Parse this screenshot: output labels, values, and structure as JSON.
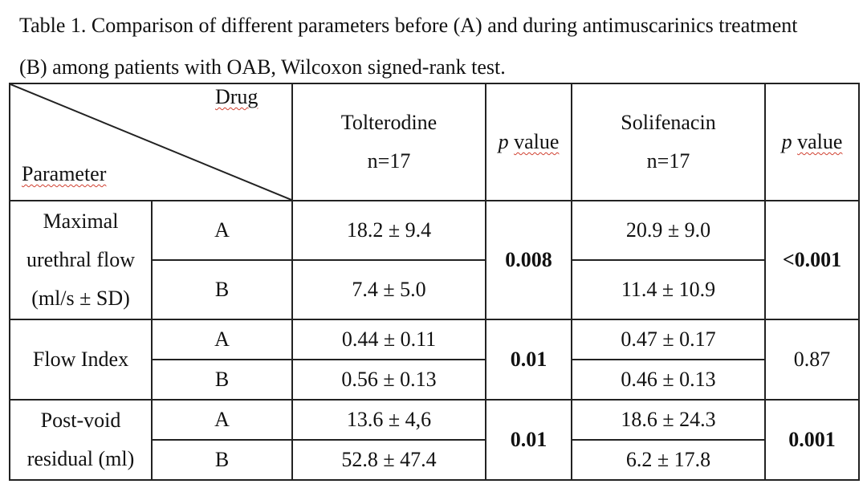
{
  "caption": {
    "line1": "Table 1. Comparison of different parameters before (A) and during antimuscarinics treatment",
    "line2": "(B) among patients with OAB, Wilcoxon signed-rank test."
  },
  "header": {
    "drug_label": "Drug",
    "parameter_label": "Parameter",
    "tolterodine_name": "Tolterodine",
    "tolterodine_n": "n=17",
    "solifenacin_name": "Solifenacin",
    "solifenacin_n": "n=17",
    "p_italic": "p",
    "p_word": "value"
  },
  "rows": [
    {
      "label_lines": [
        "Maximal",
        "urethral flow",
        "(ml/s ± SD)"
      ],
      "a_label": "A",
      "b_label": "B",
      "tol_a": "18.2 ± 9.4",
      "tol_b": "7.4 ± 5.0",
      "tol_p": "0.008",
      "sol_a": "20.9 ± 9.0",
      "sol_b": "11.4 ± 10.9",
      "sol_p": "<0.001"
    },
    {
      "label_lines": [
        "Flow Index"
      ],
      "a_label": "A",
      "b_label": "B",
      "tol_a": "0.44 ± 0.11",
      "tol_b": "0.56 ± 0.13",
      "tol_p": "0.01",
      "sol_a": "0.47 ± 0.17",
      "sol_b": "0.46 ± 0.13",
      "sol_p": "0.87"
    },
    {
      "label_lines": [
        "Post-void",
        "residual (ml)"
      ],
      "a_label": "A",
      "b_label": "B",
      "tol_a": "13.6 ± 4,6",
      "tol_b": "52.8 ± 47.4",
      "tol_p": "0.01",
      "sol_a": "18.6 ± 24.3",
      "sol_b": "6.2 ± 17.8",
      "sol_p": "0.001"
    }
  ]
}
